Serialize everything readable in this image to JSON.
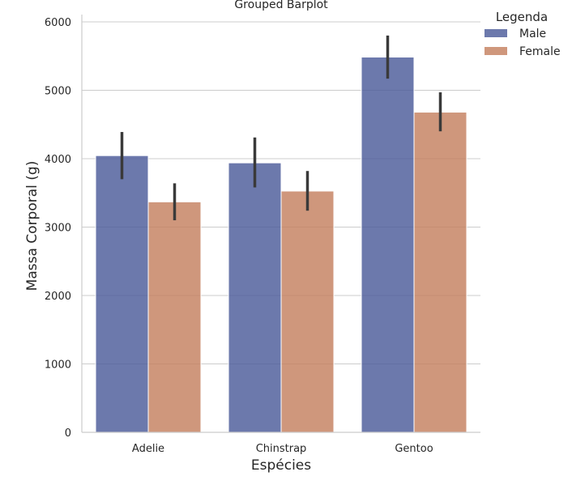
{
  "chart_data": {
    "type": "bar",
    "title": "Grouped Barplot",
    "xlabel": "Espécies",
    "ylabel": "Massa Corporal (g)",
    "categories": [
      "Adelie",
      "Chinstrap",
      "Gentoo"
    ],
    "ylim": [
      0,
      6000
    ],
    "yticks": [
      0,
      1000,
      2000,
      3000,
      4000,
      5000,
      6000
    ],
    "grid": "horizontal",
    "legend": {
      "title": "Legenda",
      "placement": "top-right, outside plot"
    },
    "series": [
      {
        "name": "Male",
        "color": "#4c5c9a",
        "values": [
          4045,
          3939,
          5485
        ],
        "ci": [
          [
            3700,
            4390
          ],
          [
            3580,
            4310
          ],
          [
            5170,
            5800
          ]
        ]
      },
      {
        "name": "Female",
        "color": "#c4805f",
        "values": [
          3369,
          3527,
          4680
        ],
        "ci": [
          [
            3100,
            3640
          ],
          [
            3240,
            3820
          ],
          [
            4400,
            4970
          ]
        ]
      }
    ]
  }
}
